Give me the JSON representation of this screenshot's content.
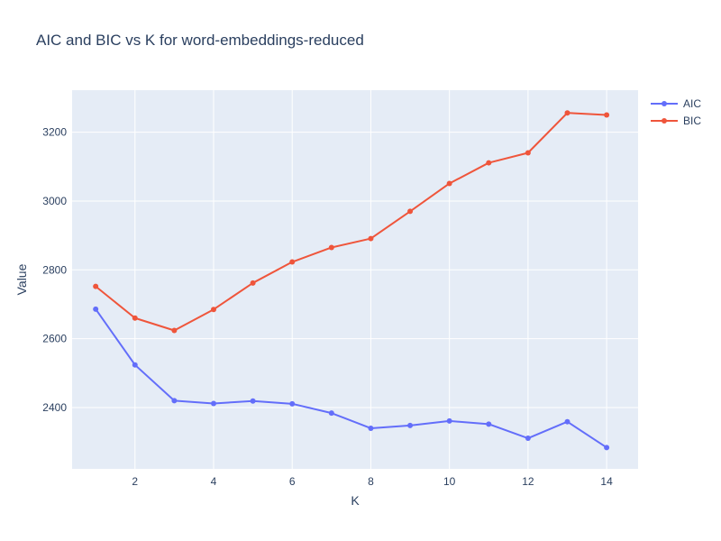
{
  "chart_data": {
    "type": "line",
    "title": "AIC and BIC vs K for word-embeddings-reduced",
    "xlabel": "K",
    "ylabel": "Value",
    "x": [
      1,
      2,
      3,
      4,
      5,
      6,
      7,
      8,
      9,
      10,
      11,
      12,
      13,
      14
    ],
    "xlim": [
      0.4,
      14.8
    ],
    "ylim": [
      2222,
      3322
    ],
    "xticks": [
      2,
      4,
      6,
      8,
      10,
      12,
      14
    ],
    "yticks": [
      2400,
      2600,
      2800,
      3000,
      3200
    ],
    "grid": true,
    "legend_position": "top-right",
    "series": [
      {
        "name": "AIC",
        "color": "#636efa",
        "values": [
          2686,
          2524,
          2420,
          2412,
          2419,
          2411,
          2384,
          2340,
          2348,
          2361,
          2352,
          2311,
          2359,
          2284
        ]
      },
      {
        "name": "BIC",
        "color": "#ef553b",
        "values": [
          2752,
          2660,
          2624,
          2685,
          2762,
          2823,
          2865,
          2891,
          2970,
          3051,
          3111,
          3140,
          3256,
          3250
        ]
      }
    ]
  }
}
